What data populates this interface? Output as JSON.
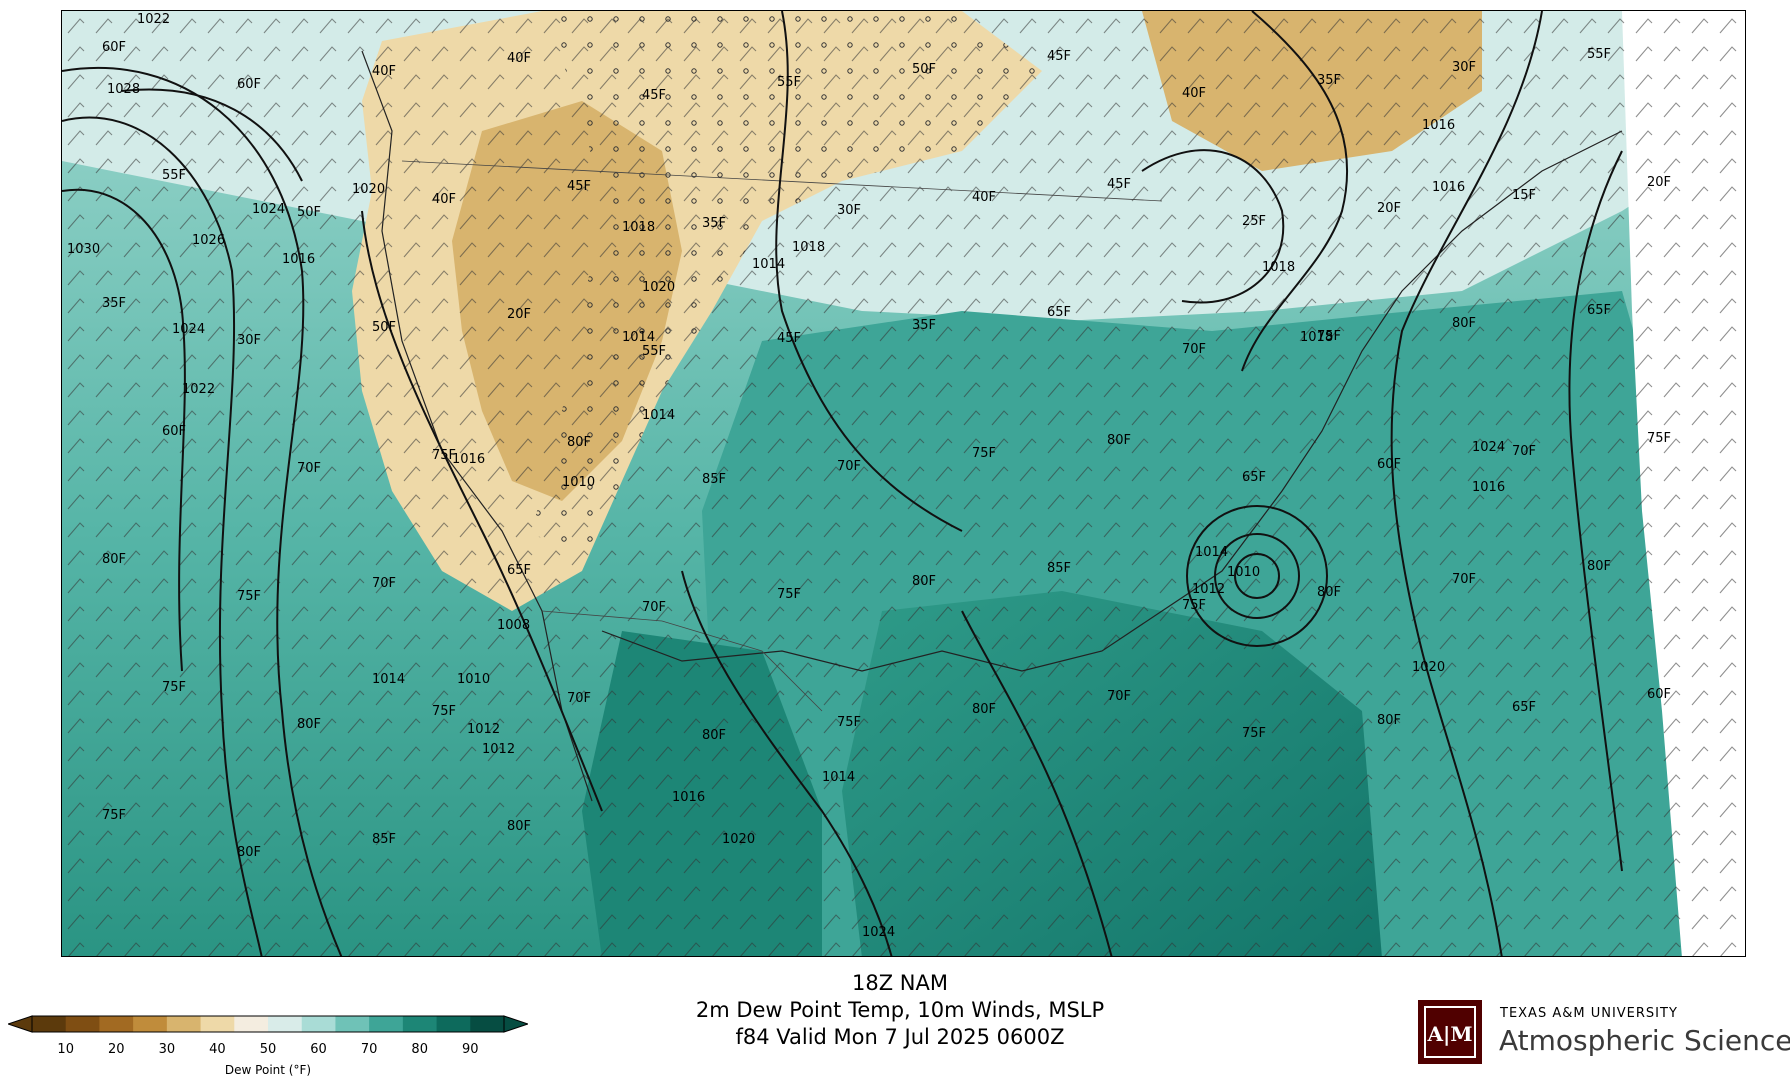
{
  "title": {
    "line1": "18Z NAM",
    "line2": "2m Dew Point Temp, 10m Winds, MSLP",
    "line3": "f84 Valid Mon 7 Jul 2025 0600Z"
  },
  "colorbar": {
    "label": "Dew Point (°F)",
    "ticks": [
      "10",
      "20",
      "30",
      "40",
      "50",
      "60",
      "70",
      "80",
      "90"
    ],
    "colors": [
      "#5c3a0c",
      "#7f4e13",
      "#a26a22",
      "#c08c3b",
      "#d8b46e",
      "#eed9a8",
      "#f4ede0",
      "#d9ece9",
      "#a9dcd6",
      "#6fc2b7",
      "#3ea597",
      "#1d8676",
      "#0d6a5c",
      "#064d42"
    ]
  },
  "logo": {
    "mark": "ATM",
    "university": "TEXAS A&M UNIVERSITY",
    "department": "Atmospheric Sciences",
    "color": "#500000"
  },
  "map": {
    "isobar_labels": [
      "1022",
      "1028",
      "1030",
      "1026",
      "1024",
      "1020",
      "1016",
      "1022",
      "1014",
      "1012",
      "1010",
      "1008",
      "1018",
      "1014",
      "1024",
      "1016",
      "1012",
      "1010",
      "1014",
      "1018",
      "1016",
      "1020",
      "1024",
      "1018",
      "1020",
      "1014",
      "1016",
      "1012",
      "1010",
      "1014",
      "1016",
      "1018",
      "1020",
      "1024",
      "1016",
      "1014"
    ],
    "dew_labels": [
      "60F",
      "60F",
      "40F",
      "40F",
      "45F",
      "55F",
      "50F",
      "45F",
      "40F",
      "35F",
      "30F",
      "55F",
      "55F",
      "50F",
      "40F",
      "45F",
      "35F",
      "30F",
      "40F",
      "45F",
      "25F",
      "20F",
      "15F",
      "20F",
      "35F",
      "30F",
      "50F",
      "20F",
      "55F",
      "45F",
      "35F",
      "65F",
      "70F",
      "75F",
      "80F",
      "65F",
      "60F",
      "70F",
      "75F",
      "80F",
      "85F",
      "70F",
      "75F",
      "80F",
      "65F",
      "60F",
      "70F",
      "75F",
      "80F",
      "75F",
      "70F",
      "65F",
      "70F",
      "75F",
      "80F",
      "85F",
      "75F",
      "80F",
      "70F",
      "80F",
      "75F",
      "80F",
      "75F",
      "70F",
      "80F",
      "75F",
      "80F",
      "70F",
      "75F",
      "80F",
      "65F",
      "60F",
      "75F",
      "80F",
      "85F",
      "80F"
    ]
  }
}
